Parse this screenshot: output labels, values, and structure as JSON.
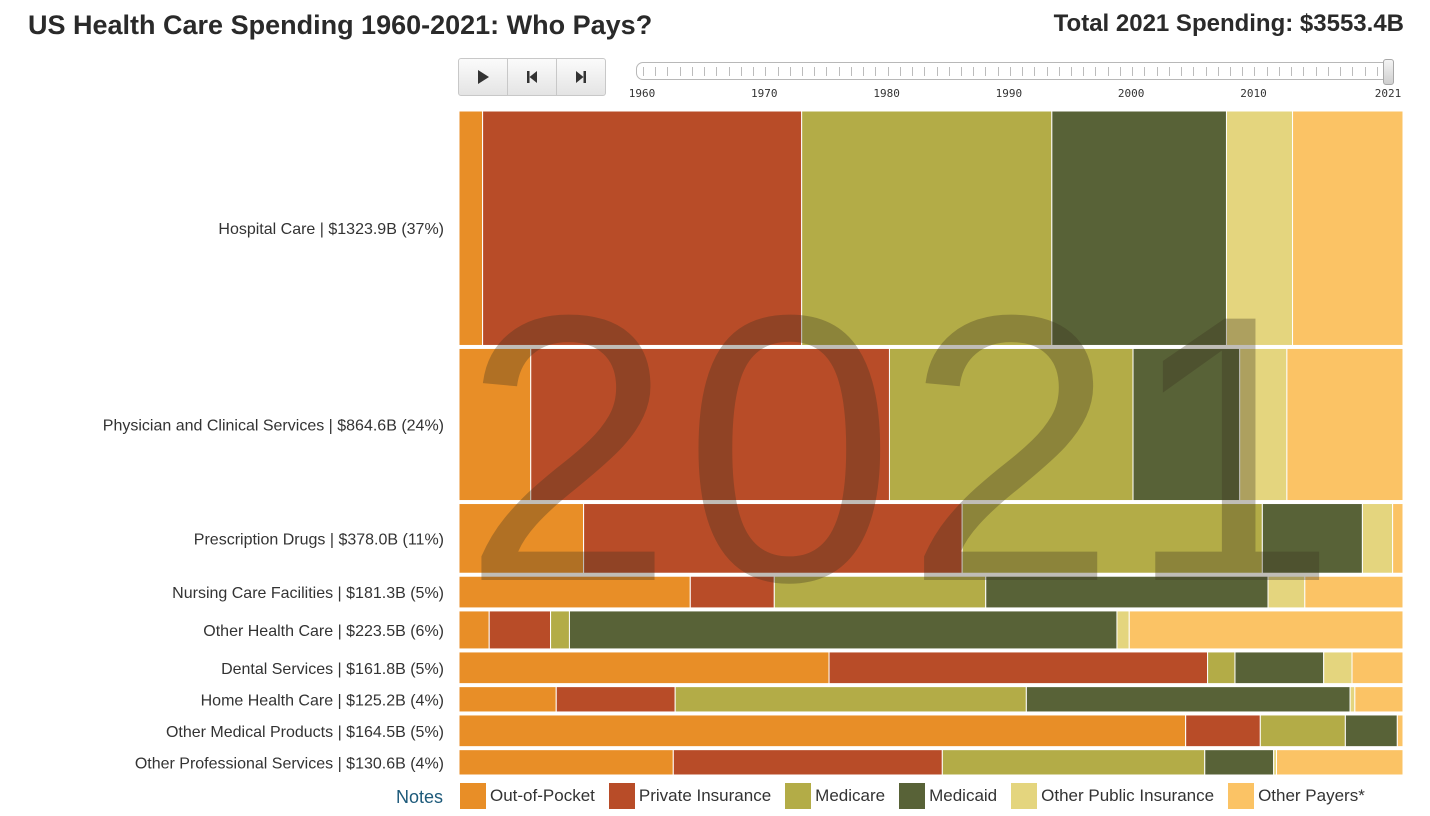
{
  "title": "US Health Care Spending 1960-2021: Who Pays?",
  "total_label": "Total 2021 Spending: $3553.4B",
  "controls": {
    "play": {
      "icon": "play-icon"
    },
    "step_back": {
      "icon": "step-back-icon"
    },
    "step_forward": {
      "icon": "step-forward-icon"
    }
  },
  "slider": {
    "min": 1960,
    "max": 2021,
    "value": 2021,
    "labels": [
      "1960",
      "1970",
      "1980",
      "1990",
      "2000",
      "2010",
      "2021"
    ]
  },
  "notes_label": "Notes",
  "chart_data": {
    "type": "mosaic",
    "title": "US Health Care Spending 1960-2021: Who Pays?",
    "year": "2021",
    "categories": [
      "Hospital Care | $1323.9B (37%)",
      "Physician and Clinical Services | $864.6B (24%)",
      "Prescription Drugs | $378.0B (11%)",
      "Nursing Care Facilities | $181.3B (5%)",
      "Other Health Care | $223.5B (6%)",
      "Dental Services | $161.8B (5%)",
      "Home Health Care | $125.2B (4%)",
      "Other Medical Products | $164.5B (5%)",
      "Other Professional Services | $130.6B (4%)"
    ],
    "row_shares": [
      37,
      24,
      11,
      5,
      6,
      5,
      4,
      5,
      4
    ],
    "series": [
      {
        "name": "Out-of-Pocket",
        "color": "#E88E27",
        "values": [
          2.5,
          7.6,
          13.2,
          24.5,
          3.2,
          39.2,
          10.3,
          76.9,
          22.7
        ]
      },
      {
        "name": "Private Insurance",
        "color": "#B84C28",
        "values": [
          33.8,
          38.0,
          40.1,
          8.9,
          6.5,
          40.1,
          12.6,
          7.9,
          28.5
        ]
      },
      {
        "name": "Medicare",
        "color": "#B3AC47",
        "values": [
          26.5,
          25.8,
          31.8,
          22.4,
          2.0,
          2.9,
          37.2,
          9.0,
          27.8
        ]
      },
      {
        "name": "Medicaid",
        "color": "#586237",
        "values": [
          18.5,
          11.3,
          10.6,
          29.9,
          58.0,
          9.4,
          34.3,
          5.5,
          7.3
        ]
      },
      {
        "name": "Other Public Insurance",
        "color": "#E4D57E",
        "values": [
          7.0,
          5.0,
          3.2,
          3.9,
          1.3,
          3.0,
          0.5,
          0.0,
          0.3
        ]
      },
      {
        "name": "Other Payers*",
        "color": "#FBC365",
        "values": [
          11.7,
          12.3,
          1.1,
          10.4,
          29.0,
          5.4,
          5.1,
          0.6,
          13.4
        ]
      }
    ],
    "grid": false,
    "legend": "bottom"
  }
}
